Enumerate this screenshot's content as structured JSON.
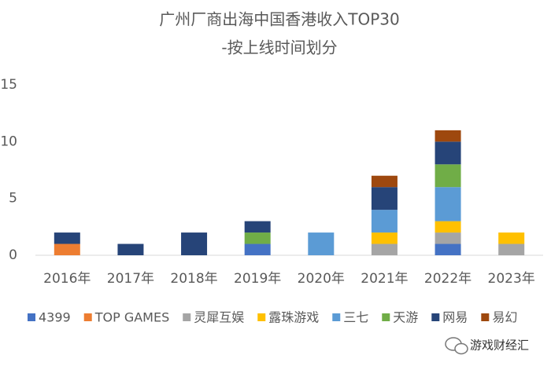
{
  "chart_data": {
    "type": "stacked_bar",
    "title": [
      "广州厂商出海中国香港收入TOP30",
      "-按上线时间划分"
    ],
    "categories": [
      "2016年",
      "2017年",
      "2018年",
      "2019年",
      "2020年",
      "2021年",
      "2022年",
      "2023年"
    ],
    "series": [
      {
        "name": "4399",
        "color": "#4472c4",
        "values": [
          0,
          0,
          0,
          1,
          0,
          0,
          1,
          0
        ]
      },
      {
        "name": "TOP GAMES",
        "color": "#ed7d31",
        "values": [
          1,
          0,
          0,
          0,
          0,
          0,
          0,
          0
        ]
      },
      {
        "name": "灵犀互娱",
        "color": "#a5a5a5",
        "values": [
          0,
          0,
          0,
          0,
          0,
          1,
          1,
          1
        ]
      },
      {
        "name": "露珠游戏",
        "color": "#ffc000",
        "values": [
          0,
          0,
          0,
          0,
          0,
          1,
          1,
          1
        ]
      },
      {
        "name": "三七",
        "color": "#5b9bd5",
        "values": [
          0,
          0,
          0,
          0,
          2,
          2,
          3,
          0
        ]
      },
      {
        "name": "天游",
        "color": "#70ad47",
        "values": [
          0,
          0,
          0,
          1,
          0,
          0,
          2,
          0
        ]
      },
      {
        "name": "网易",
        "color": "#264478",
        "values": [
          1,
          1,
          2,
          1,
          0,
          2,
          2,
          0
        ]
      },
      {
        "name": "易幻",
        "color": "#9e480e",
        "values": [
          0,
          0,
          0,
          0,
          0,
          1,
          1,
          0
        ]
      }
    ],
    "ylim": [
      0,
      15
    ],
    "yticks": [
      0,
      5,
      10,
      15
    ],
    "grid": false,
    "legend": "bottom",
    "watermark": "游戏财经汇"
  }
}
